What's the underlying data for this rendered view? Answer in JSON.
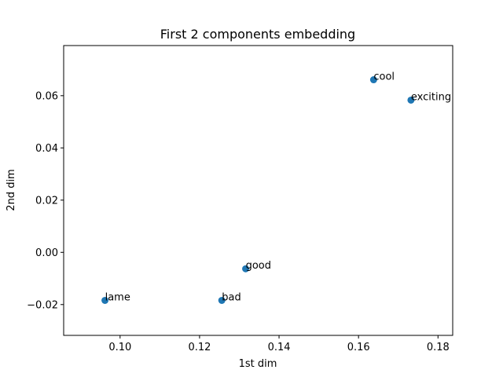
{
  "chart_data": {
    "type": "scatter",
    "title": "First 2 components embedding",
    "xlabel": "1st dim",
    "ylabel": "2nd dim",
    "xlim": [
      0.0858,
      0.1837
    ],
    "ylim": [
      -0.0318,
      0.0792
    ],
    "xticks": [
      0.1,
      0.12,
      0.14,
      0.16,
      0.18
    ],
    "xtick_labels": [
      "0.10",
      "0.12",
      "0.14",
      "0.16",
      "0.18"
    ],
    "yticks": [
      -0.02,
      0.0,
      0.02,
      0.04,
      0.06
    ],
    "ytick_labels": [
      "−0.02",
      "0.00",
      "0.02",
      "0.04",
      "0.06"
    ],
    "grid": false,
    "marker_color": "#1f77b4",
    "points": [
      {
        "label": "cool",
        "x": 0.1638,
        "y": 0.0661
      },
      {
        "label": "exciting",
        "x": 0.1732,
        "y": 0.0583
      },
      {
        "label": "good",
        "x": 0.1316,
        "y": -0.0063
      },
      {
        "label": "lame",
        "x": 0.0962,
        "y": -0.0184
      },
      {
        "label": "bad",
        "x": 0.1256,
        "y": -0.0184
      }
    ]
  }
}
